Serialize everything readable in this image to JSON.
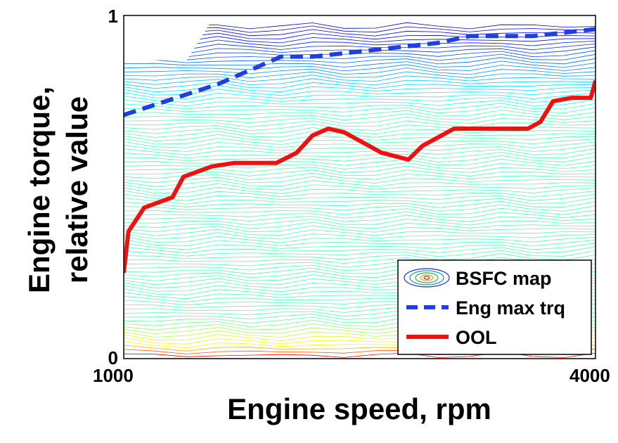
{
  "chart_data": {
    "type": "line",
    "xlabel": "Engine speed, rpm",
    "ylabel_lines": [
      "Engine torque,",
      "relative value"
    ],
    "xlim": [
      1000,
      4000
    ],
    "ylim": [
      0,
      1
    ],
    "x_tick_labels": [
      "1000",
      "4000"
    ],
    "y_tick_labels": [
      "0",
      "1"
    ],
    "grid": false,
    "legend_position": "bottom-right",
    "background_map": {
      "name": "BSFC map",
      "kind": "contour",
      "colormap": "jet"
    },
    "series": [
      {
        "name": "Eng max trq",
        "style": "dashed",
        "color": "#1f3fe0",
        "x": [
          1000,
          1200,
          1400,
          1600,
          1800,
          2000,
          2200,
          2400,
          2600,
          2800,
          3000,
          3200,
          3400,
          3600,
          3800,
          4000
        ],
        "y": [
          0.71,
          0.74,
          0.77,
          0.8,
          0.84,
          0.88,
          0.88,
          0.89,
          0.9,
          0.91,
          0.92,
          0.94,
          0.94,
          0.94,
          0.95,
          0.96
        ]
      },
      {
        "name": "OOL",
        "style": "solid",
        "color": "#ee1111",
        "x": [
          1000,
          1030,
          1130,
          1310,
          1380,
          1560,
          1700,
          1790,
          1970,
          2100,
          2200,
          2300,
          2400,
          2640,
          2810,
          2900,
          3100,
          3300,
          3400,
          3500,
          3570,
          3650,
          3730,
          3850,
          3970,
          4000
        ],
        "y": [
          0.25,
          0.37,
          0.44,
          0.47,
          0.53,
          0.56,
          0.57,
          0.57,
          0.57,
          0.6,
          0.65,
          0.67,
          0.66,
          0.6,
          0.58,
          0.62,
          0.67,
          0.67,
          0.67,
          0.67,
          0.67,
          0.69,
          0.75,
          0.76,
          0.76,
          0.81
        ]
      }
    ]
  }
}
